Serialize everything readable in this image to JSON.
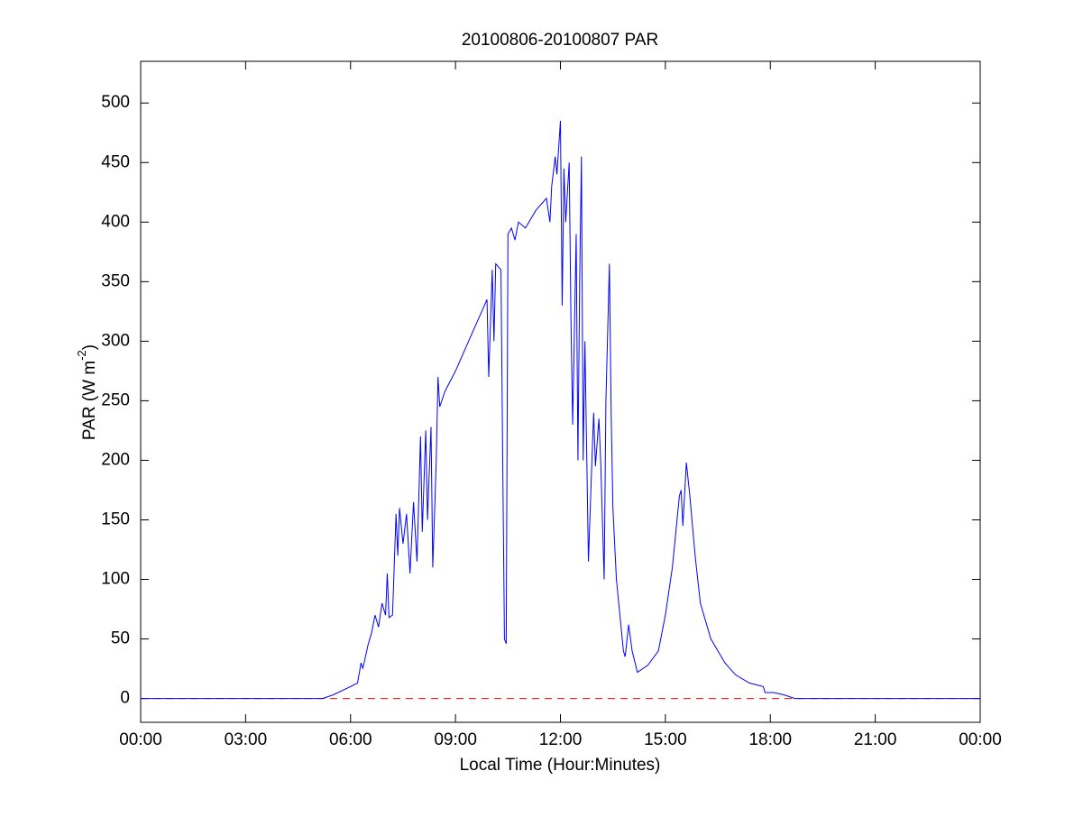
{
  "chart_data": {
    "type": "line",
    "title": "20100806-20100807 PAR",
    "xlabel": "Local Time (Hour:Minutes)",
    "ylabel": [
      "PAR (W m",
      "-2",
      ")"
    ],
    "color": "#0000ff",
    "x": [
      0,
      5.2,
      5.5,
      6.0,
      6.2,
      6.3,
      6.35,
      6.5,
      6.6,
      6.7,
      6.8,
      6.9,
      7.0,
      7.05,
      7.1,
      7.2,
      7.3,
      7.35,
      7.4,
      7.5,
      7.6,
      7.7,
      7.8,
      7.9,
      8.0,
      8.05,
      8.15,
      8.2,
      8.3,
      8.35,
      8.45,
      8.5,
      8.55,
      8.7,
      9.0,
      9.3,
      9.6,
      9.9,
      9.95,
      10.05,
      10.1,
      10.15,
      10.3,
      10.35,
      10.4,
      10.45,
      10.5,
      10.6,
      10.7,
      10.8,
      11.0,
      11.3,
      11.6,
      11.7,
      11.75,
      11.85,
      11.9,
      12.0,
      12.05,
      12.1,
      12.15,
      12.25,
      12.3,
      12.35,
      12.45,
      12.5,
      12.55,
      12.6,
      12.65,
      12.7,
      12.8,
      12.9,
      12.95,
      13.0,
      13.1,
      13.15,
      13.25,
      13.3,
      13.4,
      13.45,
      13.5,
      13.6,
      13.8,
      13.85,
      13.95,
      14.05,
      14.2,
      14.5,
      14.8,
      15.0,
      15.2,
      15.4,
      15.45,
      15.5,
      15.6,
      15.7,
      15.85,
      16.0,
      16.3,
      16.7,
      17.0,
      17.4,
      17.8,
      17.85,
      18.1,
      18.4,
      18.7,
      24
    ],
    "values": [
      0,
      0,
      3,
      10,
      13,
      30,
      25,
      45,
      55,
      70,
      60,
      80,
      70,
      105,
      68,
      70,
      155,
      120,
      160,
      130,
      155,
      105,
      165,
      115,
      220,
      140,
      225,
      150,
      228,
      110,
      200,
      270,
      245,
      258,
      275,
      295,
      315,
      335,
      270,
      360,
      300,
      365,
      360,
      200,
      50,
      46,
      390,
      395,
      385,
      400,
      395,
      410,
      420,
      400,
      430,
      455,
      440,
      485,
      330,
      445,
      400,
      450,
      320,
      230,
      390,
      200,
      350,
      455,
      200,
      300,
      115,
      200,
      240,
      195,
      235,
      200,
      100,
      250,
      365,
      240,
      160,
      100,
      40,
      35,
      62,
      40,
      22,
      28,
      40,
      70,
      110,
      170,
      175,
      145,
      198,
      170,
      120,
      80,
      50,
      30,
      20,
      13,
      10,
      5,
      5,
      3,
      0,
      0
    ],
    "reference_line": {
      "y": 0,
      "color": "#ff0000",
      "style": "dashed"
    },
    "xlim": [
      0,
      24
    ],
    "xticks": [
      {
        "value": 0,
        "label": "00:00"
      },
      {
        "value": 3,
        "label": "03:00"
      },
      {
        "value": 6,
        "label": "06:00"
      },
      {
        "value": 9,
        "label": "09:00"
      },
      {
        "value": 12,
        "label": "12:00"
      },
      {
        "value": 15,
        "label": "15:00"
      },
      {
        "value": 18,
        "label": "18:00"
      },
      {
        "value": 21,
        "label": "21:00"
      },
      {
        "value": 24,
        "label": "00:00"
      }
    ],
    "ylim": [
      -20,
      535
    ],
    "yticks": [
      0,
      50,
      100,
      150,
      200,
      250,
      300,
      350,
      400,
      450,
      500
    ],
    "grid": false
  }
}
